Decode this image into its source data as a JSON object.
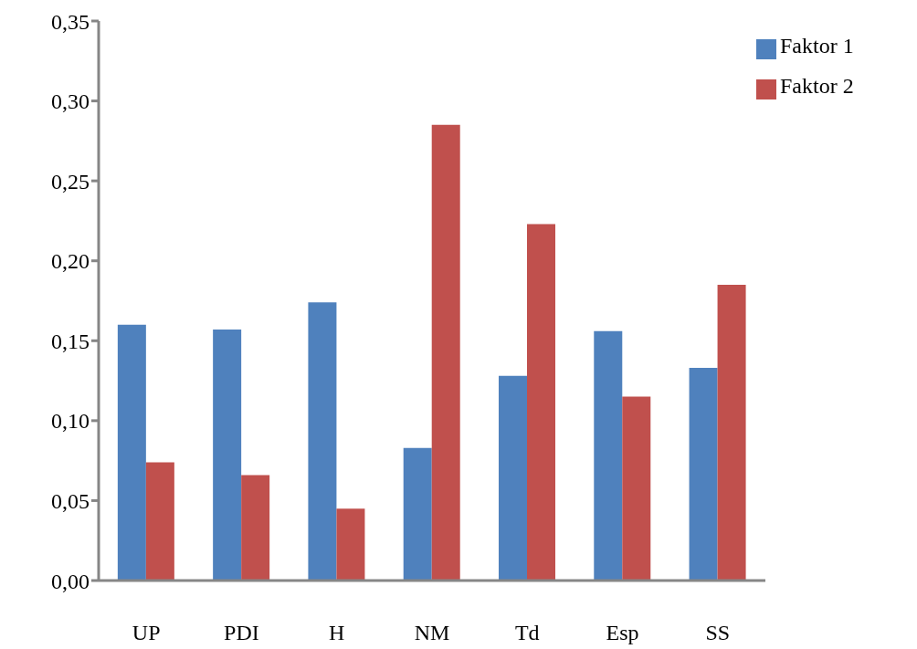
{
  "chart_data": {
    "type": "bar",
    "categories": [
      "UP",
      "PDI",
      "H",
      "NM",
      "Td",
      "Esp",
      "SS"
    ],
    "series": [
      {
        "name": "Faktor 1",
        "color": "#4f81bd",
        "values": [
          0.16,
          0.157,
          0.174,
          0.083,
          0.128,
          0.156,
          0.133
        ]
      },
      {
        "name": "Faktor 2",
        "color": "#c0504d",
        "values": [
          0.074,
          0.066,
          0.045,
          0.285,
          0.223,
          0.115,
          0.185
        ]
      }
    ],
    "ylim": [
      0,
      0.35
    ],
    "yticks": [
      {
        "value": 0,
        "label": "0,00"
      },
      {
        "value": 0.05,
        "label": "0,05"
      },
      {
        "value": 0.1,
        "label": "0,10"
      },
      {
        "value": 0.15,
        "label": "0,15"
      },
      {
        "value": 0.2,
        "label": "0,20"
      },
      {
        "value": 0.25,
        "label": "0,25"
      },
      {
        "value": 0.3,
        "label": "0,30"
      },
      {
        "value": 0.35,
        "label": "0,35"
      }
    ],
    "grid": false,
    "legend": "top right"
  }
}
